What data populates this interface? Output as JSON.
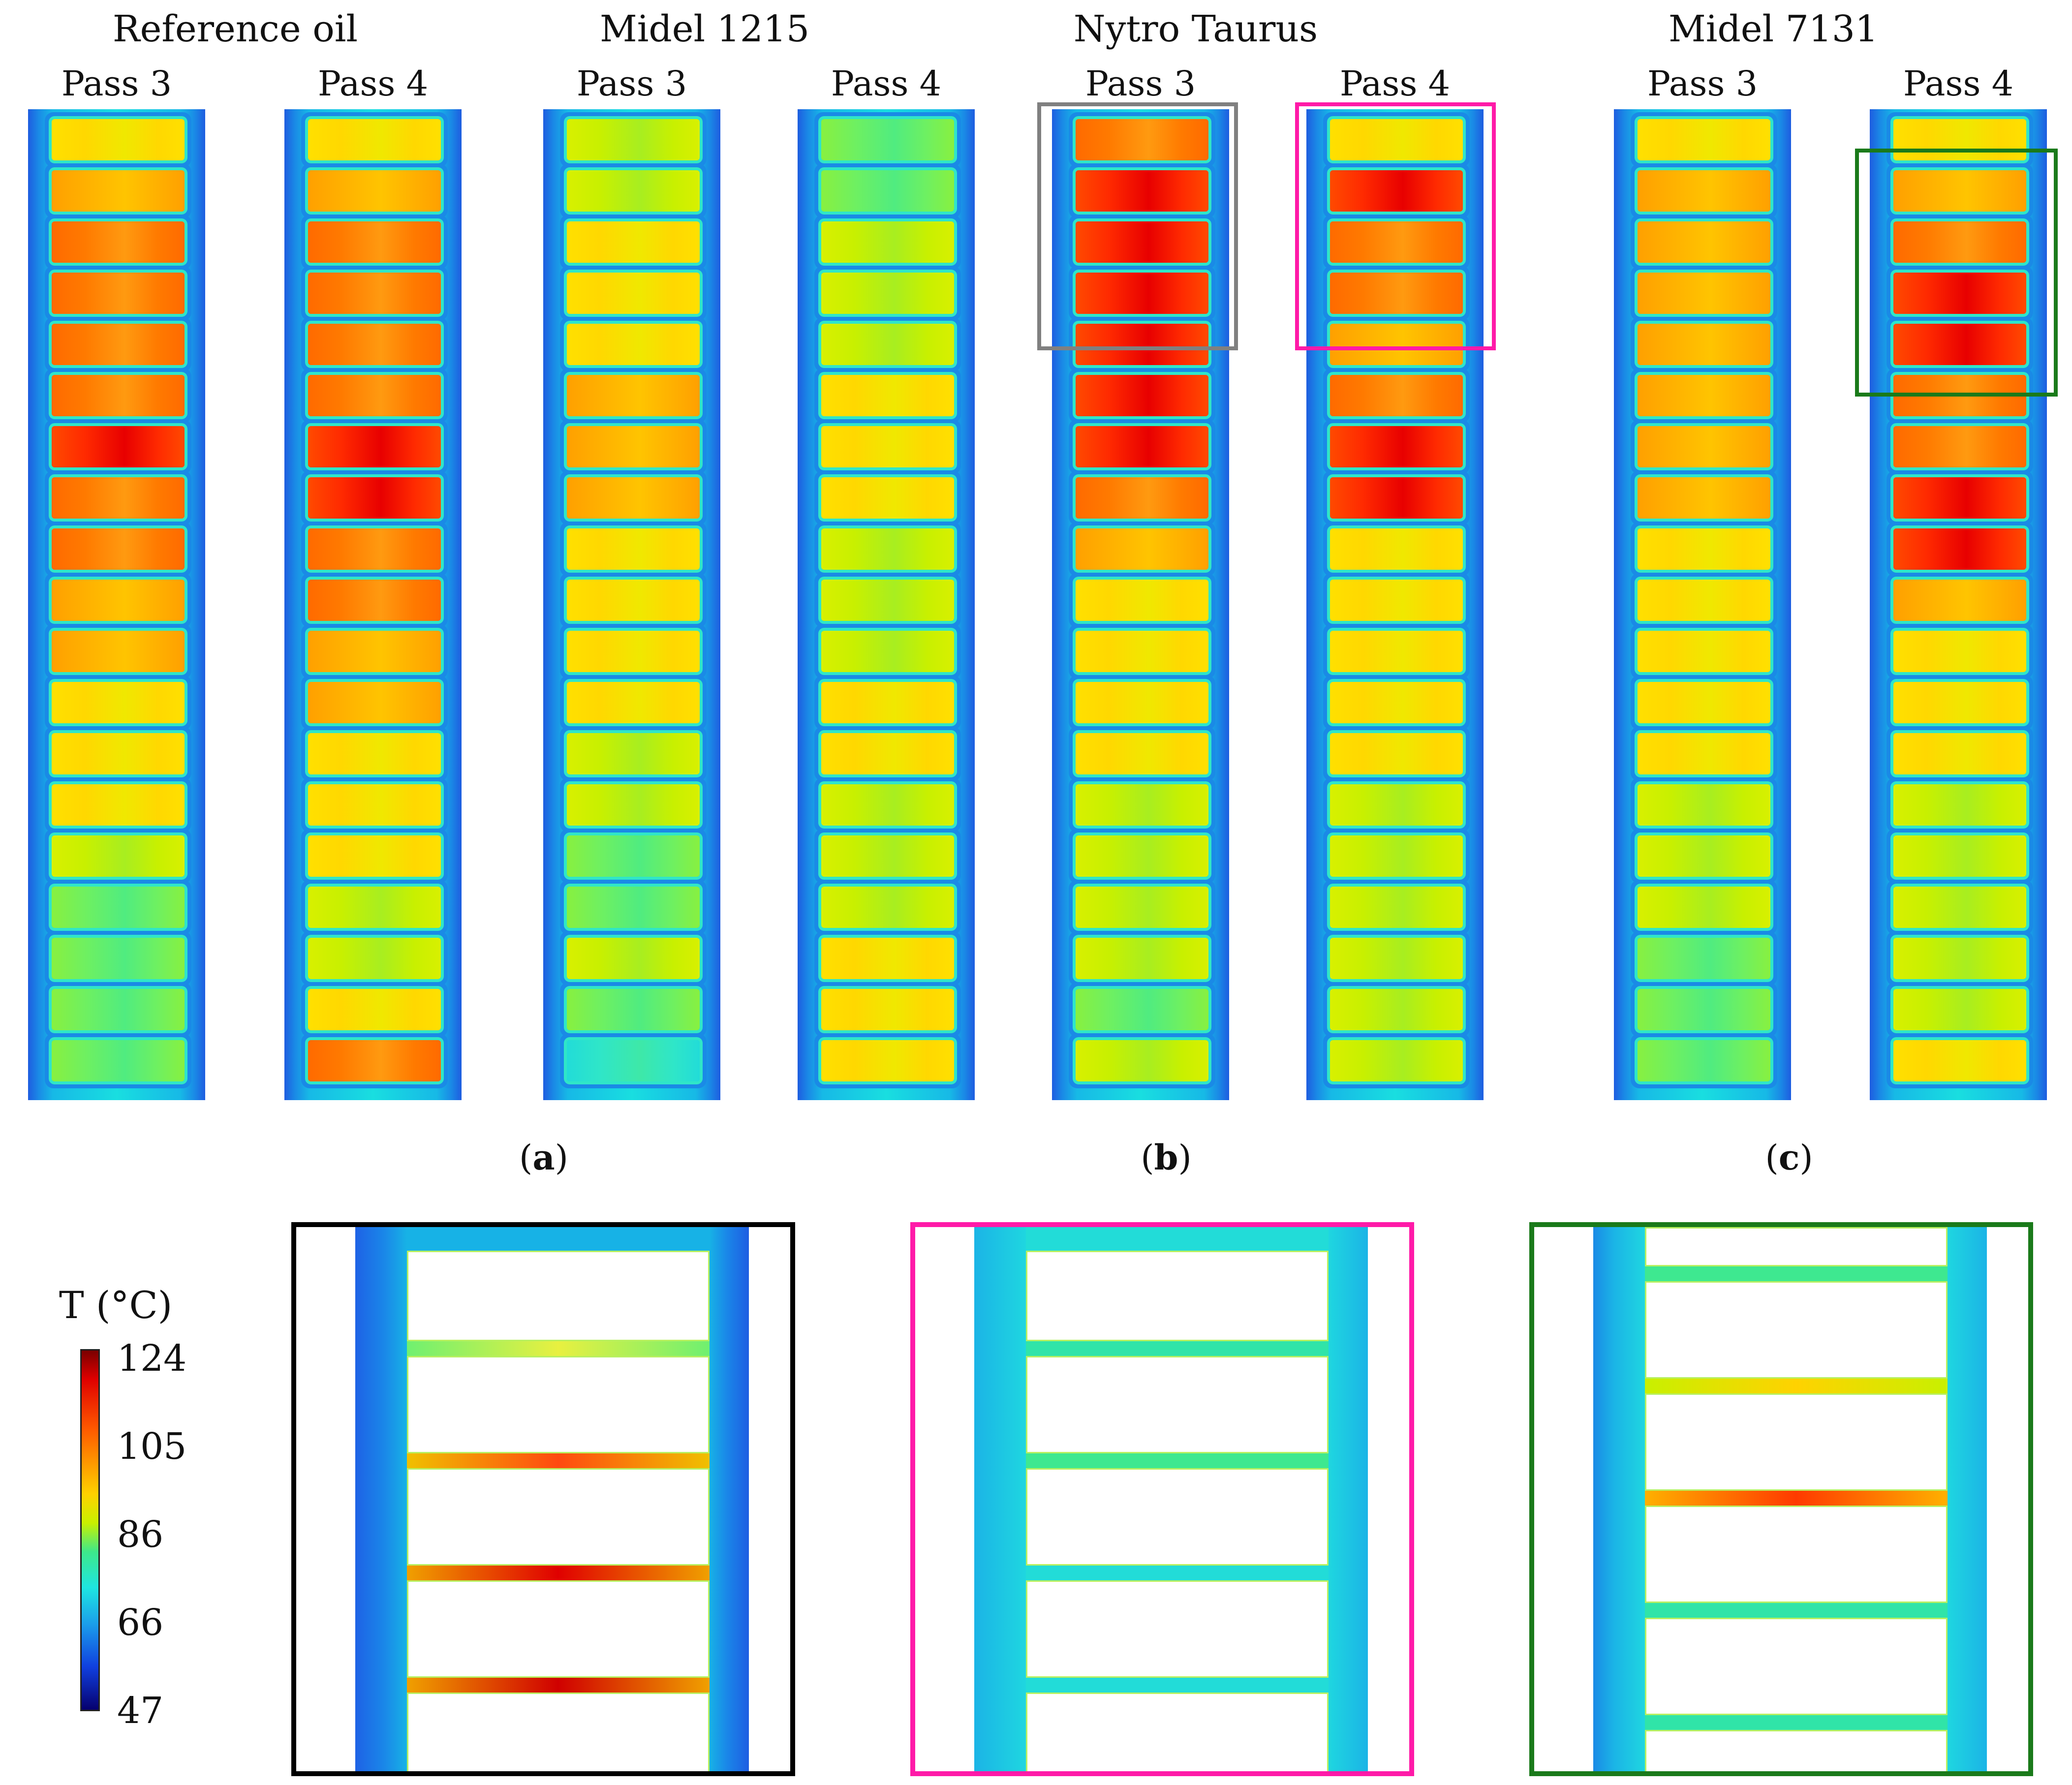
{
  "oils": [
    {
      "name": "Reference oil",
      "passes": [
        "Pass 3",
        "Pass 4"
      ]
    },
    {
      "name": "Midel 1215",
      "passes": [
        "Pass 3",
        "Pass 4"
      ]
    },
    {
      "name": "Nytro Taurus",
      "passes": [
        "Pass 3",
        "Pass 4"
      ]
    },
    {
      "name": "Midel 7131",
      "passes": [
        "Pass 3",
        "Pass 4"
      ]
    }
  ],
  "subfigures": [
    {
      "open": "(",
      "letter": "a",
      "close": ")"
    },
    {
      "open": "(",
      "letter": "b",
      "close": ")"
    },
    {
      "open": "(",
      "letter": "c",
      "close": ")"
    }
  ],
  "legend": {
    "title": "T (°C)",
    "ticks": [
      "124",
      "105",
      "86",
      "66",
      "47"
    ],
    "range": [
      47,
      124
    ]
  },
  "colors": {
    "box_pass3_nytro": "#808080",
    "box_pass4_nytro": "#ff1aa8",
    "box_pass4_midel7131": "#1a7a1a",
    "box_zoom_a": "#000000"
  }
}
